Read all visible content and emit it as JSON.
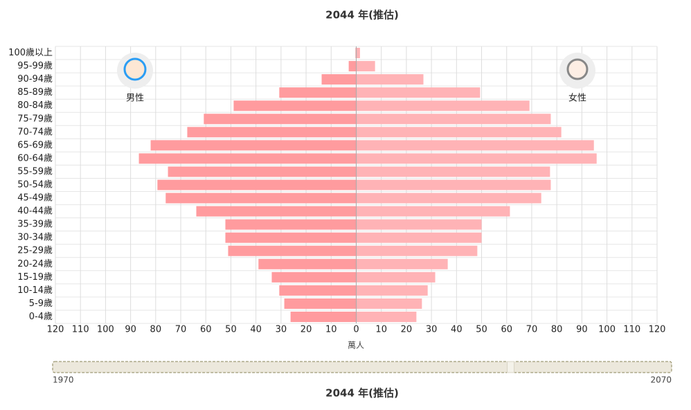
{
  "chart_data": {
    "type": "pyramid",
    "title": "2044 年(推估)",
    "categories": [
      "100歲以上",
      "95-99歲",
      "90-94歲",
      "85-89歲",
      "80-84歲",
      "75-79歲",
      "70-74歲",
      "65-69歲",
      "60-64歲",
      "55-59歲",
      "50-54歲",
      "45-49歲",
      "40-44歲",
      "35-39歲",
      "30-34歲",
      "25-29歲",
      "20-24歲",
      "15-19歲",
      "10-14歲",
      "5-9歲",
      "0-4歲"
    ],
    "series": [
      {
        "name": "男性",
        "color": "#ff9b9e",
        "values": [
          -0.3,
          -3,
          -13.8,
          -30.7,
          -48.9,
          -60.8,
          -67.4,
          -82,
          -86.7,
          -75.1,
          -79.3,
          -76,
          -63.8,
          -52.2,
          -52.2,
          -51.1,
          -39,
          -33.7,
          -30.7,
          -28.7,
          -26.2
        ]
      },
      {
        "name": "女性",
        "color": "#ffb3b6",
        "values": [
          1.5,
          7.5,
          26.8,
          49.4,
          69.1,
          77.6,
          81.8,
          94.8,
          95.9,
          77.3,
          77.6,
          73.8,
          61.3,
          50,
          50,
          48.3,
          36.5,
          31.5,
          28.5,
          26.2,
          24
        ]
      }
    ],
    "xlabel": "萬人",
    "xlim": [
      -120,
      120
    ],
    "xticks": [
      {
        "value": -120,
        "label": "120"
      },
      {
        "value": -110,
        "label": "110"
      },
      {
        "value": -100,
        "label": "100"
      },
      {
        "value": -90,
        "label": "90"
      },
      {
        "value": -80,
        "label": "80"
      },
      {
        "value": -70,
        "label": "70"
      },
      {
        "value": -60,
        "label": "60"
      },
      {
        "value": -50,
        "label": "50"
      },
      {
        "value": -40,
        "label": "40"
      },
      {
        "value": -30,
        "label": "30"
      },
      {
        "value": -20,
        "label": "20"
      },
      {
        "value": -10,
        "label": "10"
      },
      0,
      10,
      20,
      30,
      40,
      50,
      60,
      70,
      80,
      90,
      100,
      110,
      120
    ],
    "grid": true,
    "slider": {
      "min": 1970,
      "max": 2070,
      "value": 2044
    }
  }
}
